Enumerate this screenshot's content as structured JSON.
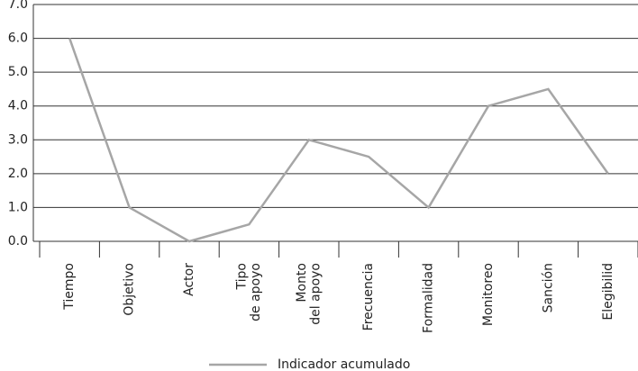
{
  "chart_data": {
    "type": "line",
    "categories": [
      "Tiempo",
      "Objetivo",
      "Actor",
      "Tipo\nde apoyo",
      "Monto\ndel apoyo",
      "Frecuencia",
      "Formalidad",
      "Monitoreo",
      "Sanción",
      "Elegibilid"
    ],
    "series": [
      {
        "name": "Indicador acumulado",
        "color": "#a6a6a6",
        "values": [
          6,
          1,
          0,
          0.5,
          3,
          2.5,
          1,
          4,
          4.5,
          2
        ]
      }
    ],
    "ylim": [
      0,
      7
    ],
    "yticks": [
      {
        "value": 0,
        "label": "0.0"
      },
      {
        "value": 1,
        "label": "1.0"
      },
      {
        "value": 2,
        "label": "2.0"
      },
      {
        "value": 3,
        "label": "3.0"
      },
      {
        "value": 4,
        "label": "4.0"
      },
      {
        "value": 5,
        "label": "5.0"
      },
      {
        "value": 6,
        "label": "6.0"
      },
      {
        "value": 7,
        "label": "7.0"
      }
    ],
    "grid": true,
    "legend": "bottom"
  }
}
